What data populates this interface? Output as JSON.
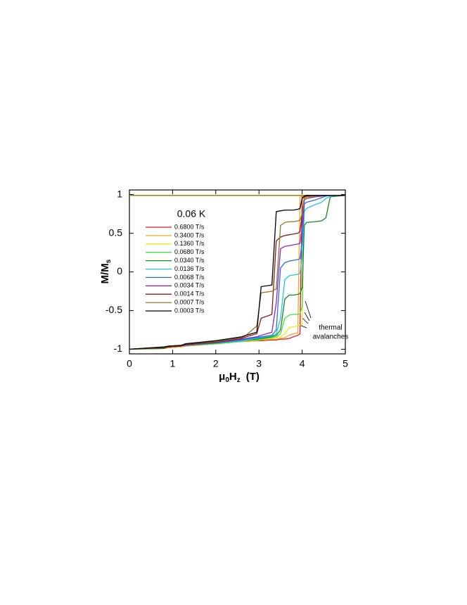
{
  "chart_data": {
    "type": "line",
    "legend_title": "0.06 K",
    "ylabel": [
      "M/M",
      "s"
    ],
    "xlabel": [
      "μ",
      "0",
      "H",
      "z",
      "(T)"
    ],
    "annotation": [
      "thermal",
      "avalanches"
    ],
    "xlim": [
      0,
      5
    ],
    "xticks": [
      0,
      1,
      2,
      3,
      4,
      5
    ],
    "ylim": [
      -1.06,
      1.06
    ],
    "yticks": [
      -1,
      -0.5,
      0,
      0.5,
      1
    ],
    "x": [
      0,
      0.8,
      0.9,
      1.2,
      1.3,
      2.0,
      2.6,
      2.7,
      2.95,
      3.05,
      3.3,
      3.4,
      3.5,
      3.6,
      3.7,
      3.8,
      3.9,
      3.95,
      4.0,
      4.05,
      4.1,
      4.3,
      4.45,
      4.55,
      4.65,
      5
    ],
    "return_branch": {
      "x": [
        0,
        5
      ],
      "values": [
        0.99,
        0.99
      ],
      "color": "#8a8a10"
    },
    "series": [
      {
        "name": "0.6800 T/s",
        "color": "#e8141e",
        "values": [
          -1,
          -0.99,
          -0.98,
          -0.97,
          -0.96,
          -0.93,
          -0.9,
          -0.9,
          -0.89,
          -0.89,
          -0.88,
          -0.88,
          -0.87,
          -0.87,
          -0.86,
          -0.84,
          -0.82,
          -0.8,
          0.97,
          0.98,
          0.98,
          0.99,
          0.99,
          0.99,
          0.99,
          0.99
        ]
      },
      {
        "name": "0.3400 T/s",
        "color": "#f5a623",
        "values": [
          -1,
          -0.99,
          -0.98,
          -0.97,
          -0.96,
          -0.93,
          -0.9,
          -0.9,
          -0.89,
          -0.88,
          -0.87,
          -0.87,
          -0.86,
          -0.85,
          -0.82,
          -0.8,
          -0.79,
          0.97,
          0.98,
          0.98,
          0.98,
          0.99,
          0.99,
          0.99,
          0.99,
          0.99
        ]
      },
      {
        "name": "0.1360 T/s",
        "color": "#f5e61e",
        "values": [
          -1,
          -0.99,
          -0.97,
          -0.97,
          -0.95,
          -0.93,
          -0.9,
          -0.89,
          -0.88,
          -0.87,
          -0.86,
          -0.85,
          -0.84,
          -0.8,
          -0.72,
          -0.71,
          -0.7,
          -0.69,
          -0.68,
          0.95,
          0.96,
          0.97,
          0.98,
          0.99,
          0.99,
          0.99
        ]
      },
      {
        "name": "0.0680 T/s",
        "color": "#3ee63c",
        "values": [
          -1,
          -0.99,
          -0.97,
          -0.96,
          -0.95,
          -0.93,
          -0.9,
          -0.89,
          -0.88,
          -0.87,
          -0.85,
          -0.84,
          -0.8,
          -0.6,
          -0.56,
          -0.55,
          -0.55,
          -0.54,
          -0.45,
          0.97,
          0.98,
          0.98,
          0.99,
          0.99,
          0.99,
          0.99
        ]
      },
      {
        "name": "0.0340 T/s",
        "color": "#138a1e",
        "values": [
          -1,
          -0.99,
          -0.97,
          -0.96,
          -0.95,
          -0.92,
          -0.89,
          -0.88,
          -0.87,
          -0.86,
          -0.84,
          -0.82,
          -0.75,
          -0.35,
          -0.3,
          -0.3,
          -0.29,
          -0.28,
          -0.2,
          0.6,
          0.64,
          0.65,
          0.66,
          0.7,
          0.97,
          0.99
        ]
      },
      {
        "name": "0.0136 T/s",
        "color": "#23c4e6",
        "values": [
          -1,
          -0.98,
          -0.97,
          -0.96,
          -0.95,
          -0.92,
          -0.89,
          -0.88,
          -0.86,
          -0.85,
          -0.83,
          -0.8,
          -0.6,
          -0.1,
          -0.05,
          -0.04,
          -0.03,
          -0.02,
          0.2,
          0.78,
          0.82,
          0.87,
          0.9,
          0.95,
          0.98,
          0.99
        ]
      },
      {
        "name": "0.0068 T/s",
        "color": "#2a6ee6",
        "values": [
          -1,
          -0.98,
          -0.97,
          -0.96,
          -0.95,
          -0.92,
          -0.88,
          -0.87,
          -0.85,
          -0.84,
          -0.82,
          -0.75,
          0.05,
          0.12,
          0.14,
          0.15,
          0.16,
          0.17,
          0.4,
          0.88,
          0.9,
          0.93,
          0.96,
          0.98,
          0.99,
          0.99
        ]
      },
      {
        "name": "0.0034 T/s",
        "color": "#8a2ad2",
        "values": [
          -1,
          -0.98,
          -0.97,
          -0.96,
          -0.94,
          -0.91,
          -0.87,
          -0.86,
          -0.84,
          -0.82,
          -0.78,
          -0.4,
          0.3,
          0.33,
          0.34,
          0.35,
          0.36,
          0.37,
          0.6,
          0.93,
          0.95,
          0.97,
          0.98,
          0.99,
          0.99,
          0.99
        ]
      },
      {
        "name": "0.0014 T/s",
        "color": "#8c1a1a",
        "values": [
          -1,
          -0.98,
          -0.97,
          -0.96,
          -0.94,
          -0.91,
          -0.86,
          -0.84,
          -0.8,
          -0.6,
          -0.55,
          0.4,
          0.45,
          0.47,
          0.48,
          0.49,
          0.5,
          0.52,
          0.75,
          0.97,
          0.98,
          0.99,
          0.99,
          0.99,
          0.99,
          0.99
        ]
      },
      {
        "name": "0.0007 T/s",
        "color": "#8a7a2a",
        "values": [
          -1,
          -0.97,
          -0.96,
          -0.95,
          -0.93,
          -0.9,
          -0.85,
          -0.82,
          -0.7,
          -0.27,
          -0.25,
          -0.22,
          0.6,
          0.64,
          0.65,
          0.65,
          0.66,
          0.67,
          0.75,
          0.96,
          0.97,
          0.98,
          0.99,
          0.99,
          0.99,
          0.99
        ]
      },
      {
        "name": "0.0003 T/s",
        "color": "#000000",
        "values": [
          -1,
          -0.97,
          -0.96,
          -0.95,
          -0.93,
          -0.89,
          -0.84,
          -0.82,
          -0.78,
          -0.19,
          -0.17,
          0.78,
          0.79,
          0.8,
          0.8,
          0.8,
          0.81,
          0.82,
          0.95,
          0.98,
          0.99,
          0.99,
          0.99,
          0.99,
          0.99,
          0.99
        ]
      }
    ]
  }
}
